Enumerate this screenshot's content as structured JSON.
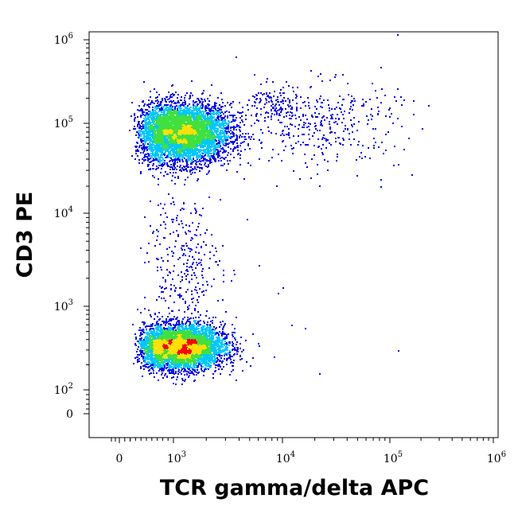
{
  "chart_data": {
    "type": "scatter",
    "title": "",
    "xlabel": "TCR gamma/delta APC",
    "ylabel": "CD3 PE",
    "x_scale": "biexponential (log above ~10^2, linear near 0)",
    "y_scale": "biexponential (log above ~10^2, linear near 0)",
    "xlim": [
      -300,
      1000000
    ],
    "ylim": [
      -60,
      1000000
    ],
    "x_ticks": [
      {
        "base": "0",
        "exp": ""
      },
      {
        "base": "10",
        "exp": "3"
      },
      {
        "base": "10",
        "exp": "4"
      },
      {
        "base": "10",
        "exp": "5"
      },
      {
        "base": "10",
        "exp": "6"
      }
    ],
    "y_ticks": [
      {
        "base": "0",
        "exp": ""
      },
      {
        "base": "10",
        "exp": "2"
      },
      {
        "base": "10",
        "exp": "3"
      },
      {
        "base": "10",
        "exp": "4"
      },
      {
        "base": "10",
        "exp": "5"
      },
      {
        "base": "10",
        "exp": "6"
      }
    ],
    "color_map": "density (blue → cyan → green → yellow → red)",
    "grid": false,
    "legend": "none",
    "populations": [
      {
        "x_center": 1200,
        "y_center": 80000,
        "x_spread_log": 0.22,
        "y_spread_log": 0.17,
        "density": "high"
      },
      {
        "x_center": 1150,
        "y_center": 330,
        "x_spread_log": 0.2,
        "y_spread_log": 0.13,
        "density": "high"
      },
      {
        "x_center": 1200,
        "y_center": 2500,
        "x_spread_log": 0.18,
        "y_spread_log": 0.45,
        "density": "sparse"
      },
      {
        "x_center": 8500,
        "y_center": 170000,
        "x_spread_log": 0.12,
        "y_spread_log": 0.12,
        "density": "low"
      },
      {
        "x_center": 25000,
        "y_center": 100000,
        "x_spread_log": 0.35,
        "y_spread_log": 0.25,
        "density": "sparse"
      }
    ],
    "outliers": [
      [
        12000,
        600
      ],
      [
        16000,
        550
      ],
      [
        22000,
        160
      ],
      [
        120000,
        300
      ],
      [
        6000,
        2800
      ],
      [
        9000,
        1400
      ],
      [
        10000,
        1600
      ]
    ],
    "colors": {
      "low": "#0000ff",
      "mid_low": "#00c8ff",
      "mid": "#40e040",
      "mid_high": "#ffe000",
      "high": "#ff0000"
    }
  }
}
